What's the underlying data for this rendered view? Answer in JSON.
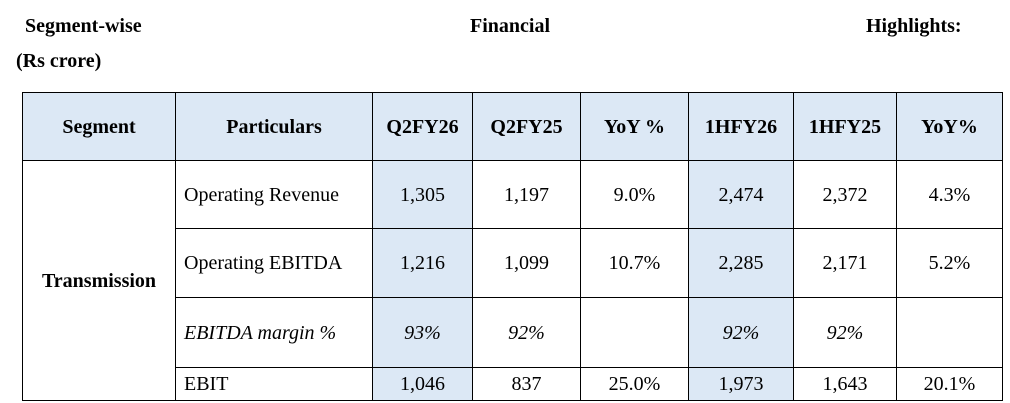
{
  "heading": {
    "words": [
      "Segment-wise",
      "Financial",
      "Highlights:"
    ],
    "unit": "(Rs crore)"
  },
  "table": {
    "columns": [
      "Segment",
      "Particulars",
      "Q2FY26",
      "Q2FY25",
      "YoY %",
      "1HFY26",
      "1HFY25",
      "YoY%"
    ],
    "segment": "Transmission",
    "rows": [
      {
        "particulars": "Operating Revenue",
        "q2fy26": "1,305",
        "q2fy25": "1,197",
        "yoy_q": "9.0%",
        "h1fy26": "2,474",
        "h1fy25": "2,372",
        "yoy_h": "4.3%"
      },
      {
        "particulars": "Operating EBITDA",
        "q2fy26": "1,216",
        "q2fy25": "1,099",
        "yoy_q": "10.7%",
        "h1fy26": "2,285",
        "h1fy25": "2,171",
        "yoy_h": "5.2%"
      },
      {
        "particulars": "EBITDA margin %",
        "italic": true,
        "q2fy26": "93%",
        "q2fy25": "92%",
        "h1fy26": "92%",
        "h1fy25": "92%"
      },
      {
        "particulars": "EBIT",
        "q2fy26": "1,046",
        "q2fy25": "837",
        "yoy_q": "25.0%",
        "h1fy26": "1,973",
        "h1fy25": "1,643",
        "yoy_h": "20.1%"
      }
    ]
  }
}
